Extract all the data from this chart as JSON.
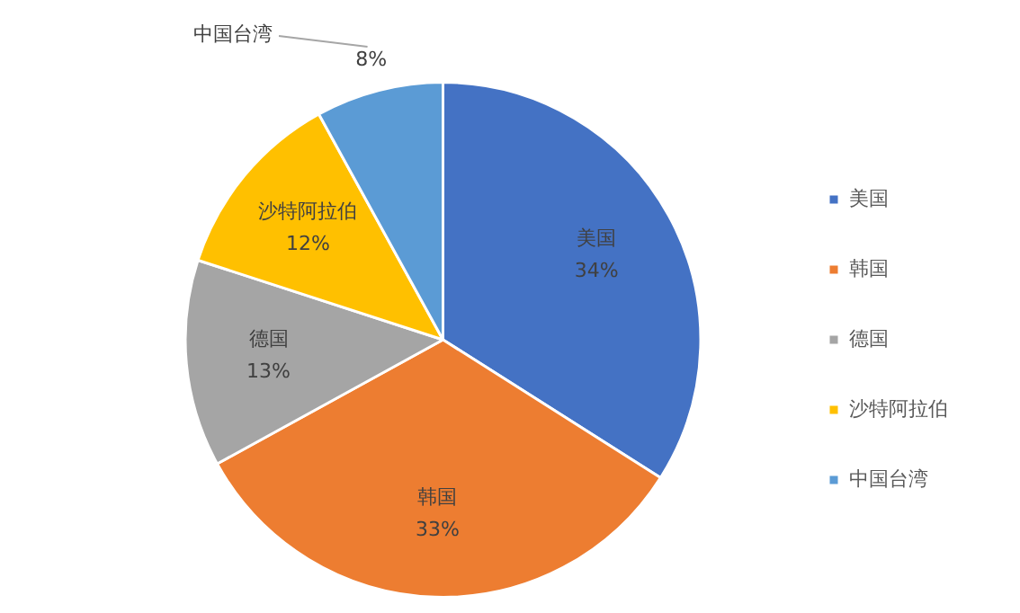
{
  "chart_data": {
    "type": "pie",
    "categories": [
      "美国",
      "韩国",
      "德国",
      "沙特阿拉伯",
      "中国台湾"
    ],
    "values": [
      34,
      33,
      13,
      12,
      8
    ],
    "value_labels": [
      "34%",
      "33%",
      "13%",
      "12%",
      "8%"
    ],
    "colors": [
      "#4472c4",
      "#ed7d31",
      "#a5a5a5",
      "#ffc000",
      "#5b9bd5"
    ],
    "legend": "right"
  }
}
